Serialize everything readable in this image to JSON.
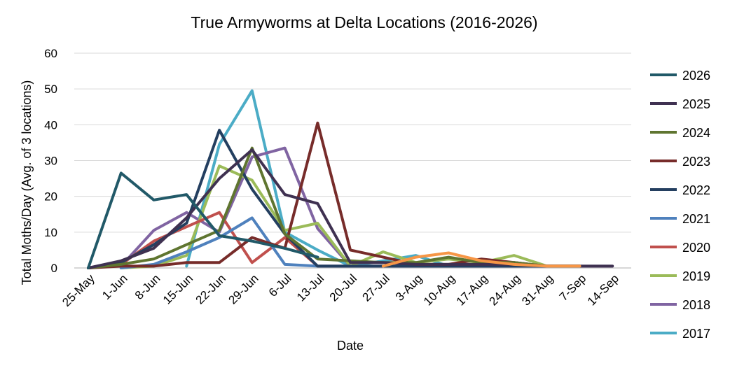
{
  "chart_data": {
    "type": "line",
    "title": "True Armyworms at Delta Locations (2016-2026)",
    "xlabel": "Date",
    "ylabel": "Total Moths/Day (Avg. of 3 locations)",
    "ylim": [
      0,
      60
    ],
    "yticks": [
      0,
      10,
      20,
      30,
      40,
      50,
      60
    ],
    "grid": true,
    "legend": "right",
    "categories": [
      "25-May",
      "1-Jun",
      "8-Jun",
      "15-Jun",
      "22-Jun",
      "29-Jun",
      "6-Jul",
      "13-Jul",
      "20-Jul",
      "27-Jul",
      "3-Aug",
      "10-Aug",
      "17-Aug",
      "24-Aug",
      "31-Aug",
      "7-Sep",
      "14-Sep"
    ],
    "series": [
      {
        "name": "2017",
        "color": "#4bacc6",
        "values": [
          null,
          null,
          null,
          0.5,
          34.5,
          49.5,
          10,
          5,
          0.5,
          2,
          3.5,
          0.5,
          0.5,
          0.5,
          0.5,
          0.5,
          null
        ]
      },
      {
        "name": "2018",
        "color": "#8064a2",
        "values": [
          null,
          0.5,
          10.5,
          15.5,
          10,
          31,
          33.5,
          11,
          0.5,
          0.5,
          0.5,
          0.5,
          0.5,
          0.5,
          0.5,
          0.5,
          0.5
        ]
      },
      {
        "name": "2019",
        "color": "#9bbb59",
        "values": [
          null,
          0,
          0.5,
          3.5,
          28.5,
          24.5,
          10.5,
          12.5,
          0.5,
          4.5,
          1.5,
          2.5,
          1.5,
          3.5,
          0.5,
          0.5,
          null
        ]
      },
      {
        "name": "2020",
        "color": "#c0504d",
        "values": [
          0,
          1,
          7.5,
          11.5,
          15.5,
          1.5,
          8.5,
          0.5,
          0.5,
          0.5,
          0.5,
          0.5,
          0.5,
          1.5,
          0.5,
          0.5,
          null
        ]
      },
      {
        "name": "2021",
        "color": "#4f81bd",
        "values": [
          null,
          0,
          1,
          4.5,
          8.5,
          14,
          1,
          0.5,
          0.5,
          0.5,
          0.5,
          0.5,
          0.5,
          0.5,
          0.5,
          null,
          null
        ]
      },
      {
        "name": "2022",
        "color": "#243f60",
        "values": [
          0,
          1.5,
          6.5,
          12.5,
          38.5,
          22,
          9.5,
          0.5,
          0.5,
          0.5,
          0.5,
          0.5,
          0.5,
          0.5,
          0.5,
          0.5,
          null
        ]
      },
      {
        "name": "2023",
        "color": "#772c2a",
        "values": [
          0,
          0.5,
          0.5,
          1.5,
          1.5,
          8.5,
          5.5,
          40.5,
          5,
          3,
          1,
          1,
          2.5,
          1.5,
          0.5,
          0.5,
          null
        ]
      },
      {
        "name": "2024",
        "color": "#5f7530",
        "values": [
          0,
          1,
          2.5,
          6.5,
          10.5,
          33.5,
          9.5,
          2.5,
          2,
          1.5,
          1.5,
          3,
          1.5,
          1.5,
          0.5,
          0.5,
          null
        ]
      },
      {
        "name": "2025",
        "color": "#3f3151",
        "values": [
          0,
          2,
          5.5,
          14,
          25,
          33,
          20.5,
          18,
          1.5,
          1.5,
          1,
          1,
          1,
          1,
          0.5,
          0.5,
          0.5
        ]
      },
      {
        "name": "2026",
        "color": "#215968",
        "values": [
          0,
          26.5,
          19,
          20.5,
          9,
          7.5,
          5.5,
          3,
          null,
          null,
          null,
          null,
          null,
          null,
          null,
          null,
          null
        ]
      },
      {
        "name": "",
        "color": "#f79646",
        "values": [
          null,
          null,
          null,
          null,
          null,
          null,
          null,
          null,
          null,
          0.5,
          3,
          4.2,
          2,
          1,
          0.5,
          0.5,
          null
        ]
      }
    ],
    "legend_order": [
      "2026",
      "2025",
      "2024",
      "2023",
      "2022",
      "2021",
      "2020",
      "2019",
      "2018",
      "2017"
    ]
  }
}
